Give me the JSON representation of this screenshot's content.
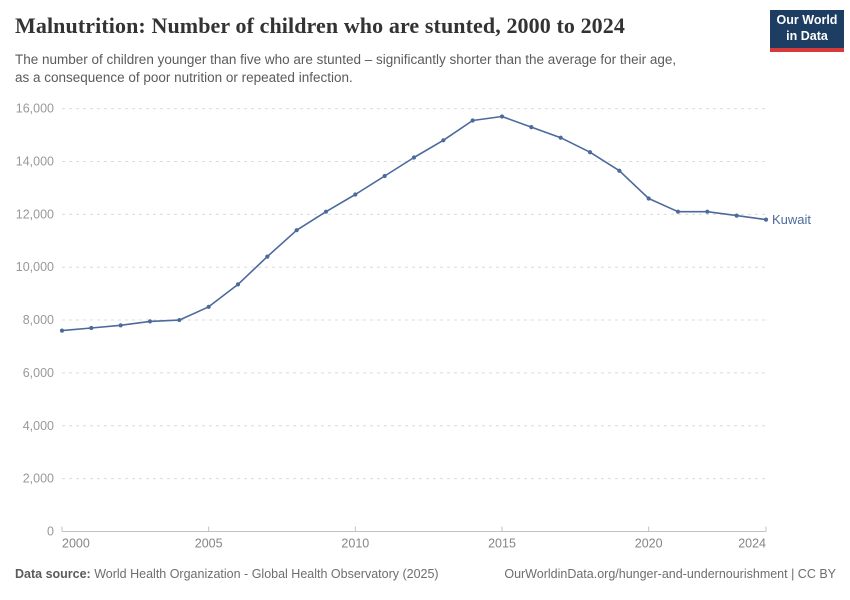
{
  "header": {
    "title": "Malnutrition: Number of children who are stunted, 2000 to 2024",
    "subtitle_line1": "The number of children younger than five who are stunted – significantly shorter than the average for their age,",
    "subtitle_line2": "as a consequence of poor nutrition or repeated infection.",
    "logo": {
      "line1": "Our World",
      "line2": "in Data",
      "bg_color": "#1d3d63",
      "stripe_color": "#d73a3a"
    }
  },
  "chart_data": {
    "type": "line",
    "title": "Malnutrition: Number of children who are stunted, 2000 to 2024",
    "xlabel": "",
    "ylabel": "",
    "xlim": [
      2000,
      2024
    ],
    "ylim": [
      0,
      16000
    ],
    "grid": "dashed-horizontal",
    "legend_position": "end-of-line-label",
    "x": [
      2000,
      2001,
      2002,
      2003,
      2004,
      2005,
      2006,
      2007,
      2008,
      2009,
      2010,
      2011,
      2012,
      2013,
      2014,
      2015,
      2016,
      2017,
      2018,
      2019,
      2020,
      2021,
      2022,
      2023,
      2024
    ],
    "series": [
      {
        "name": "Kuwait",
        "color": "#4C6A9C",
        "values": [
          7600,
          7700,
          7800,
          7950,
          8000,
          8500,
          9350,
          10400,
          11400,
          12100,
          12750,
          13450,
          14150,
          14800,
          15550,
          15700,
          15300,
          14900,
          14350,
          13650,
          12600,
          12100,
          12100,
          11950,
          11800
        ]
      }
    ],
    "xticks": [
      {
        "value": 2000,
        "label": "2000"
      },
      {
        "value": 2005,
        "label": "2005"
      },
      {
        "value": 2010,
        "label": "2010"
      },
      {
        "value": 2015,
        "label": "2015"
      },
      {
        "value": 2020,
        "label": "2020"
      },
      {
        "value": 2024,
        "label": "2024"
      }
    ],
    "yticks": [
      {
        "value": 0,
        "label": "0"
      },
      {
        "value": 2000,
        "label": "2,000"
      },
      {
        "value": 4000,
        "label": "4,000"
      },
      {
        "value": 6000,
        "label": "6,000"
      },
      {
        "value": 8000,
        "label": "8,000"
      },
      {
        "value": 10000,
        "label": "10,000"
      },
      {
        "value": 12000,
        "label": "12,000"
      },
      {
        "value": 14000,
        "label": "14,000"
      },
      {
        "value": 16000,
        "label": "16,000"
      }
    ],
    "colors": {
      "line": "#4C6A9C",
      "entity_label": "#4C6A9C",
      "gridline": "#dcdcdc",
      "axis": "#c3c3c3",
      "ytick_label": "#999999",
      "xtick_label": "#858585"
    }
  },
  "footer": {
    "source_label": "Data source:",
    "source_text": "World Health Organization - Global Health Observatory (2025)",
    "link_text": "OurWorldinData.org/hunger-and-undernourishment | CC BY"
  }
}
